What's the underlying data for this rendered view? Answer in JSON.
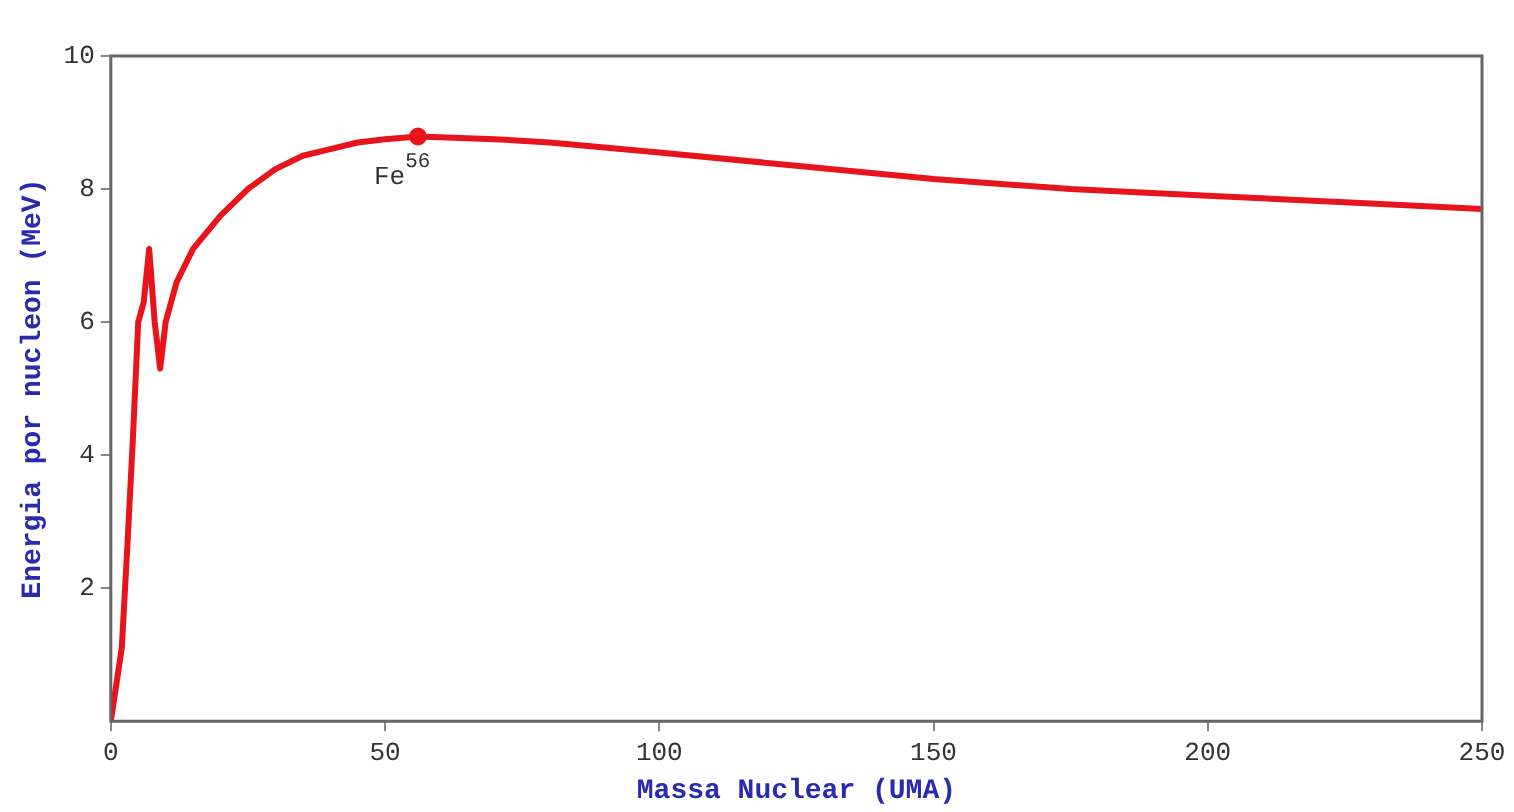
{
  "chart_data": {
    "type": "line",
    "xlabel": "Massa Nuclear (UMA)",
    "ylabel": "Energia por nucleon (MeV)",
    "xlim": [
      0,
      250
    ],
    "xticks": [
      0,
      50,
      100,
      150,
      200,
      250
    ],
    "ylim": [
      0,
      10
    ],
    "yticks": [
      2,
      4,
      6,
      8,
      10
    ],
    "grid": false,
    "legend": false,
    "series": [
      {
        "type": "line",
        "color": "#e8141c",
        "marker": "none",
        "x": [
          0,
          2,
          3,
          4,
          5,
          6,
          7,
          8,
          9,
          10,
          12,
          15,
          20,
          25,
          30,
          35,
          40,
          45,
          50,
          56,
          60,
          70,
          80,
          100,
          125,
          150,
          175,
          200,
          225,
          250
        ],
        "values": [
          0,
          1.1,
          2.6,
          4.2,
          6,
          6.3,
          7.1,
          6,
          5.3,
          6,
          6.6,
          7.1,
          7.6,
          8,
          8.3,
          8.5,
          8.6,
          8.7,
          8.75,
          8.79,
          8.78,
          8.75,
          8.7,
          8.55,
          8.35,
          8.15,
          8,
          7.9,
          7.8,
          7.7
        ]
      },
      {
        "type": "scatter",
        "color": "#e8141c",
        "marker": "circle",
        "x": [
          56
        ],
        "values": [
          8.79
        ]
      }
    ],
    "annotations": [
      {
        "text": "Fe$^{56}$",
        "x": 56,
        "y": 8.79
      }
    ]
  }
}
